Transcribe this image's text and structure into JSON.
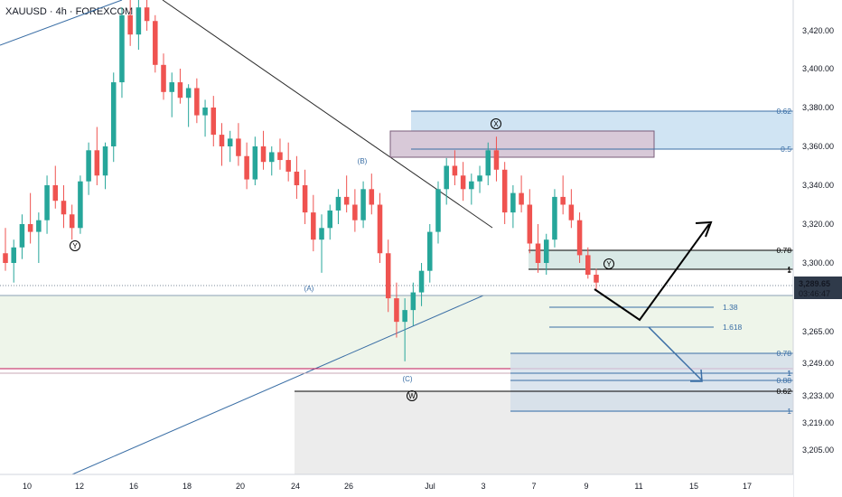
{
  "header": {
    "title": "XAUUSD · 4h · FOREXCOM"
  },
  "price_badge": {
    "price": "3,289.65",
    "countdown": "03:46:47"
  },
  "colors": {
    "bull": "#26a69a",
    "bear": "#ef5350",
    "fib_blue": "#3a6ea5",
    "fib_box": "#bcd8ee",
    "supply_box": "#d8c9d8",
    "price_badge": "#2f3a4a",
    "pink_line": "#c2185b",
    "axis_text": "#131722"
  },
  "chart_data": {
    "type": "candlestick",
    "symbol": "XAUUSD",
    "timeframe": "4h",
    "source": "FOREXCOM",
    "y_ticks": [
      {
        "value": 3420,
        "label": "3,420.00"
      },
      {
        "value": 3400,
        "label": "3,400.00"
      },
      {
        "value": 3380,
        "label": "3,380.00"
      },
      {
        "value": 3360,
        "label": "3,360.00"
      },
      {
        "value": 3340,
        "label": "3,340.00"
      },
      {
        "value": 3320,
        "label": "3,320.00"
      },
      {
        "value": 3300,
        "label": "3,300.00"
      },
      {
        "value": 3265,
        "label": "3,265.00"
      },
      {
        "value": 3249,
        "label": "3,249.00"
      },
      {
        "value": 3233,
        "label": "3,233.00"
      },
      {
        "value": 3219,
        "label": "3,219.00"
      },
      {
        "value": 3205,
        "label": "3,205.00"
      }
    ],
    "x_ticks": [
      "10",
      "12",
      "16",
      "18",
      "20",
      "24",
      "26",
      "Jul",
      "3",
      "7",
      "9",
      "11",
      "15",
      "17"
    ],
    "last_price": 3289.65,
    "candles_ohlc": [
      [
        3305,
        3318,
        3296,
        3300
      ],
      [
        3300,
        3312,
        3290,
        3308
      ],
      [
        3308,
        3325,
        3302,
        3320
      ],
      [
        3320,
        3336,
        3310,
        3316
      ],
      [
        3316,
        3326,
        3300,
        3322
      ],
      [
        3322,
        3345,
        3315,
        3340
      ],
      [
        3340,
        3350,
        3328,
        3332
      ],
      [
        3332,
        3340,
        3318,
        3325
      ],
      [
        3325,
        3330,
        3312,
        3318
      ],
      [
        3318,
        3345,
        3315,
        3342
      ],
      [
        3342,
        3362,
        3335,
        3358
      ],
      [
        3358,
        3370,
        3340,
        3345
      ],
      [
        3345,
        3362,
        3338,
        3360
      ],
      [
        3360,
        3398,
        3352,
        3393
      ],
      [
        3393,
        3432,
        3385,
        3428
      ],
      [
        3428,
        3440,
        3412,
        3418
      ],
      [
        3418,
        3438,
        3410,
        3432
      ],
      [
        3432,
        3442,
        3420,
        3425
      ],
      [
        3425,
        3428,
        3398,
        3402
      ],
      [
        3402,
        3408,
        3384,
        3388
      ],
      [
        3388,
        3398,
        3375,
        3393
      ],
      [
        3393,
        3400,
        3382,
        3385
      ],
      [
        3385,
        3392,
        3370,
        3390
      ],
      [
        3390,
        3395,
        3372,
        3376
      ],
      [
        3376,
        3384,
        3365,
        3380
      ],
      [
        3380,
        3386,
        3360,
        3366
      ],
      [
        3366,
        3372,
        3350,
        3360
      ],
      [
        3360,
        3368,
        3352,
        3364
      ],
      [
        3364,
        3372,
        3350,
        3355
      ],
      [
        3355,
        3362,
        3338,
        3343
      ],
      [
        3343,
        3365,
        3340,
        3360
      ],
      [
        3360,
        3368,
        3348,
        3352
      ],
      [
        3352,
        3360,
        3345,
        3357
      ],
      [
        3357,
        3364,
        3348,
        3353
      ],
      [
        3353,
        3362,
        3342,
        3347
      ],
      [
        3347,
        3355,
        3333,
        3340
      ],
      [
        3340,
        3348,
        3320,
        3326
      ],
      [
        3326,
        3335,
        3306,
        3312
      ],
      [
        3312,
        3325,
        3295,
        3318
      ],
      [
        3318,
        3330,
        3312,
        3327
      ],
      [
        3327,
        3338,
        3320,
        3334
      ],
      [
        3334,
        3345,
        3326,
        3330
      ],
      [
        3330,
        3338,
        3316,
        3322
      ],
      [
        3322,
        3342,
        3318,
        3338
      ],
      [
        3338,
        3346,
        3325,
        3330
      ],
      [
        3330,
        3336,
        3300,
        3305
      ],
      [
        3305,
        3312,
        3275,
        3282
      ],
      [
        3282,
        3290,
        3262,
        3270
      ],
      [
        3270,
        3282,
        3250,
        3276
      ],
      [
        3276,
        3290,
        3268,
        3285
      ],
      [
        3285,
        3300,
        3278,
        3296
      ],
      [
        3296,
        3320,
        3290,
        3316
      ],
      [
        3316,
        3342,
        3310,
        3338
      ],
      [
        3338,
        3354,
        3330,
        3350
      ],
      [
        3350,
        3358,
        3340,
        3345
      ],
      [
        3345,
        3352,
        3332,
        3338
      ],
      [
        3338,
        3346,
        3330,
        3342
      ],
      [
        3342,
        3350,
        3336,
        3345
      ],
      [
        3345,
        3362,
        3340,
        3358
      ],
      [
        3358,
        3365,
        3342,
        3348
      ],
      [
        3348,
        3352,
        3320,
        3326
      ],
      [
        3326,
        3340,
        3318,
        3336
      ],
      [
        3336,
        3345,
        3326,
        3330
      ],
      [
        3330,
        3338,
        3305,
        3310
      ],
      [
        3310,
        3320,
        3295,
        3300
      ],
      [
        3300,
        3315,
        3294,
        3312
      ],
      [
        3312,
        3338,
        3308,
        3334
      ],
      [
        3334,
        3345,
        3325,
        3330
      ],
      [
        3330,
        3338,
        3318,
        3322
      ],
      [
        3322,
        3326,
        3300,
        3304
      ],
      [
        3304,
        3308,
        3292,
        3294
      ],
      [
        3294,
        3297,
        3286,
        3290
      ]
    ],
    "fib_levels": [
      {
        "label": "0.62",
        "value": 3379
      },
      {
        "label": "0.5",
        "value": 3358
      },
      {
        "label": "0.78",
        "value": 3307
      },
      {
        "label": "1",
        "value": 3297
      },
      {
        "label": "1.38",
        "value": 3275
      },
      {
        "label": "1.618",
        "value": 3265
      },
      {
        "label": "0.78",
        "value": 3256
      },
      {
        "label": "1",
        "value": 3246
      },
      {
        "label": "0.88",
        "value": 3241
      },
      {
        "label": "0.62",
        "value": 3235
      },
      {
        "label": "1",
        "value": 3222
      }
    ],
    "wave_labels": [
      "Y",
      "(B)",
      "(A)",
      "(C)",
      "X",
      "Y",
      "W"
    ]
  }
}
